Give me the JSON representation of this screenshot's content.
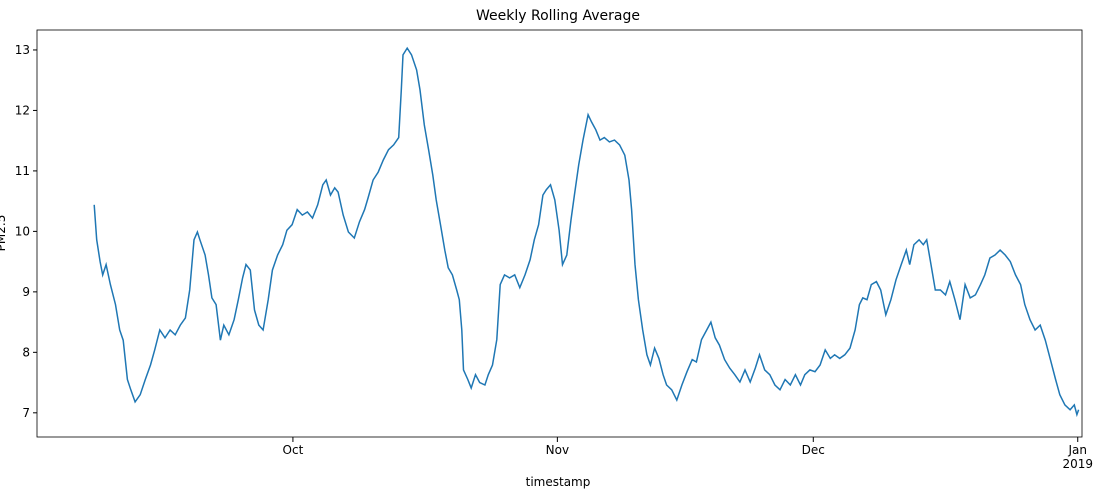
{
  "chart_data": {
    "type": "line",
    "title": "Weekly Rolling Average",
    "xlabel": "timestamp",
    "ylabel": "PM2.5",
    "color": "#1f77b4",
    "xlim": [
      0,
      122.5
    ],
    "ylim": [
      6.6,
      13.33
    ],
    "xticks": [
      {
        "value": 30,
        "label": "Oct"
      },
      {
        "value": 61,
        "label": "Nov"
      },
      {
        "value": 91,
        "label": "Dec"
      },
      {
        "value": 122,
        "label": "Jan\n2019"
      }
    ],
    "yticks": [
      7,
      8,
      9,
      10,
      11,
      12,
      13
    ],
    "x": [
      6.7,
      7.0,
      7.4,
      7.7,
      8.1,
      8.6,
      9.2,
      9.7,
      10.1,
      10.6,
      11.0,
      11.5,
      12.1,
      12.7,
      13.3,
      13.8,
      14.4,
      15.0,
      15.6,
      16.2,
      16.8,
      17.4,
      17.9,
      18.4,
      18.8,
      19.1,
      19.7,
      20.1,
      20.5,
      21.0,
      21.5,
      21.9,
      22.5,
      23.1,
      23.6,
      24.1,
      24.5,
      25.0,
      25.5,
      26.0,
      26.5,
      27.1,
      27.6,
      28.2,
      28.8,
      29.3,
      29.9,
      30.5,
      31.1,
      31.7,
      32.3,
      32.9,
      33.5,
      33.9,
      34.4,
      34.9,
      35.3,
      35.9,
      36.5,
      37.2,
      37.8,
      38.4,
      38.8,
      39.4,
      40.0,
      40.6,
      41.2,
      41.8,
      42.4,
      42.7,
      42.9,
      43.4,
      43.9,
      44.5,
      44.9,
      45.4,
      45.9,
      46.4,
      46.8,
      47.3,
      47.8,
      48.2,
      48.7,
      49.2,
      49.5,
      49.8,
      50.0,
      50.5,
      50.9,
      51.4,
      51.9,
      52.5,
      52.9,
      53.4,
      53.9,
      54.3,
      54.8,
      55.4,
      56.0,
      56.6,
      57.2,
      57.8,
      58.3,
      58.8,
      59.3,
      59.7,
      60.2,
      60.7,
      61.2,
      61.6,
      62.1,
      62.6,
      63.0,
      63.5,
      64.0,
      64.6,
      65.0,
      65.5,
      66.0,
      66.5,
      67.1,
      67.7,
      68.3,
      68.9,
      69.4,
      69.7,
      70.1,
      70.5,
      71.0,
      71.5,
      71.9,
      72.4,
      72.9,
      73.4,
      73.8,
      74.4,
      75.0,
      75.6,
      76.2,
      76.8,
      77.3,
      77.9,
      78.5,
      79.0,
      79.5,
      80.0,
      80.6,
      81.2,
      81.8,
      82.4,
      83.0,
      83.6,
      84.2,
      84.7,
      85.3,
      85.9,
      86.5,
      87.1,
      87.7,
      88.3,
      88.9,
      89.5,
      90.0,
      90.6,
      91.2,
      91.8,
      92.4,
      93.0,
      93.5,
      94.1,
      94.7,
      95.3,
      95.9,
      96.4,
      96.8,
      97.3,
      97.8,
      98.4,
      98.9,
      99.5,
      100.1,
      100.7,
      101.3,
      101.9,
      102.3,
      102.8,
      103.4,
      103.9,
      104.3,
      104.8,
      105.3,
      105.9,
      106.5,
      107.0,
      107.6,
      108.2,
      108.8,
      109.4,
      110.0,
      110.6,
      111.1,
      111.7,
      112.3,
      112.9,
      113.5,
      114.1,
      114.7,
      115.3,
      115.8,
      116.4,
      117.0,
      117.6,
      118.2,
      118.8,
      119.4,
      119.9,
      120.5,
      121.1,
      121.6,
      121.9,
      122.1
    ],
    "values": [
      10.44,
      9.86,
      9.5,
      9.28,
      9.45,
      9.12,
      8.79,
      8.37,
      8.2,
      7.55,
      7.38,
      7.18,
      7.3,
      7.55,
      7.79,
      8.04,
      8.37,
      8.24,
      8.37,
      8.29,
      8.45,
      8.57,
      9.03,
      9.86,
      9.99,
      9.86,
      9.61,
      9.28,
      8.9,
      8.79,
      8.2,
      8.45,
      8.29,
      8.54,
      8.87,
      9.23,
      9.45,
      9.36,
      8.7,
      8.45,
      8.37,
      8.87,
      9.36,
      9.61,
      9.78,
      10.02,
      10.11,
      10.36,
      10.27,
      10.32,
      10.22,
      10.44,
      10.77,
      10.85,
      10.6,
      10.72,
      10.65,
      10.27,
      9.99,
      9.89,
      10.16,
      10.36,
      10.55,
      10.85,
      10.98,
      11.18,
      11.35,
      11.43,
      11.55,
      12.34,
      12.92,
      13.03,
      12.92,
      12.67,
      12.34,
      11.76,
      11.35,
      10.93,
      10.52,
      10.11,
      9.69,
      9.4,
      9.28,
      9.03,
      8.87,
      8.37,
      7.71,
      7.55,
      7.41,
      7.63,
      7.5,
      7.46,
      7.63,
      7.79,
      8.21,
      9.12,
      9.28,
      9.23,
      9.28,
      9.07,
      9.28,
      9.53,
      9.86,
      10.11,
      10.6,
      10.69,
      10.77,
      10.52,
      10.02,
      9.45,
      9.61,
      10.19,
      10.6,
      11.1,
      11.51,
      11.93,
      11.81,
      11.68,
      11.51,
      11.55,
      11.48,
      11.51,
      11.43,
      11.26,
      10.85,
      10.36,
      9.45,
      8.87,
      8.37,
      7.96,
      7.79,
      8.07,
      7.9,
      7.63,
      7.46,
      7.38,
      7.21,
      7.46,
      7.68,
      7.88,
      7.84,
      8.21,
      8.37,
      8.5,
      8.24,
      8.12,
      7.88,
      7.74,
      7.63,
      7.51,
      7.71,
      7.51,
      7.74,
      7.96,
      7.71,
      7.63,
      7.46,
      7.38,
      7.55,
      7.46,
      7.63,
      7.46,
      7.63,
      7.71,
      7.68,
      7.79,
      8.04,
      7.9,
      7.96,
      7.9,
      7.96,
      8.07,
      8.37,
      8.79,
      8.9,
      8.87,
      9.12,
      9.17,
      9.03,
      8.62,
      8.87,
      9.2,
      9.45,
      9.69,
      9.45,
      9.78,
      9.86,
      9.78,
      9.86,
      9.45,
      9.03,
      9.03,
      8.95,
      9.17,
      8.87,
      8.54,
      9.12,
      8.9,
      8.95,
      9.12,
      9.28,
      9.56,
      9.61,
      9.69,
      9.61,
      9.5,
      9.28,
      9.12,
      8.79,
      8.54,
      8.37,
      8.45,
      8.2,
      7.88,
      7.55,
      7.3,
      7.13,
      7.05,
      7.13,
      6.97,
      7.05
    ]
  }
}
